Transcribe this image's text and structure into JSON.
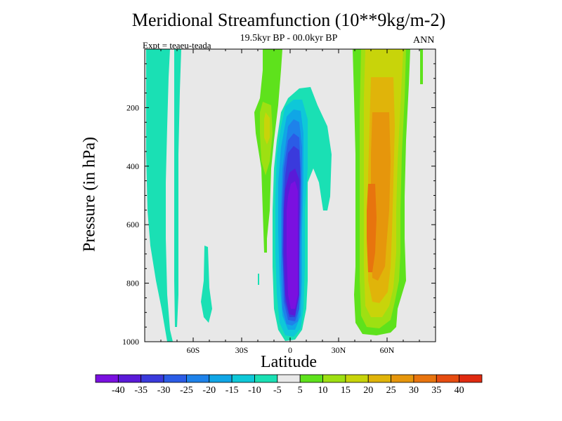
{
  "chart_data": {
    "type": "contour",
    "title": "Meridional Streamfunction (10**9kg/m-2)",
    "subtitle": "19.5kyr BP - 00.0kyr BP",
    "expt_label": "Expt = teaeu-teada",
    "season": "ANN",
    "xlabel": "Latitude",
    "ylabel": "Pressure (in hPa)",
    "xlim": [
      -90,
      90
    ],
    "ylim": [
      1000,
      0
    ],
    "x_ticks": [
      {
        "value": -60,
        "label": "60S"
      },
      {
        "value": -30,
        "label": "30S"
      },
      {
        "value": 0,
        "label": "0"
      },
      {
        "value": 30,
        "label": "30N"
      },
      {
        "value": 60,
        "label": "60N"
      }
    ],
    "y_ticks": [
      {
        "value": 200,
        "label": "200"
      },
      {
        "value": 400,
        "label": "400"
      },
      {
        "value": 600,
        "label": "600"
      },
      {
        "value": 800,
        "label": "800"
      },
      {
        "value": 1000,
        "label": "1000"
      }
    ],
    "colorbar": {
      "levels": [
        "-40",
        "-35",
        "-30",
        "-25",
        "-20",
        "-15",
        "-10",
        "-5",
        "5",
        "10",
        "15",
        "20",
        "25",
        "30",
        "35",
        "40"
      ],
      "colors": [
        "#7a10e0",
        "#5a1ad8",
        "#3a3adc",
        "#2b5ce6",
        "#1e82ea",
        "#10a6e6",
        "#0ec8d8",
        "#1ae0b4",
        "#e8e8e8",
        "#5ee21c",
        "#9ee012",
        "#c8d40a",
        "#e0b40a",
        "#e6960c",
        "#e8740e",
        "#e64c10",
        "#e02a10"
      ]
    },
    "features": [
      {
        "name": "tropical-minimum",
        "min": -40,
        "lat_range": [
          -5,
          7
        ],
        "p_range": [
          240,
          990
        ]
      },
      {
        "name": "nh-midlat-maximum",
        "max": 30,
        "lat_range": [
          40,
          65
        ],
        "p_range": [
          0,
          980
        ]
      },
      {
        "name": "sh-polar-weak-negative",
        "min": -10,
        "lat_range": [
          -88,
          -70
        ],
        "p_range": [
          0,
          950
        ]
      }
    ]
  }
}
